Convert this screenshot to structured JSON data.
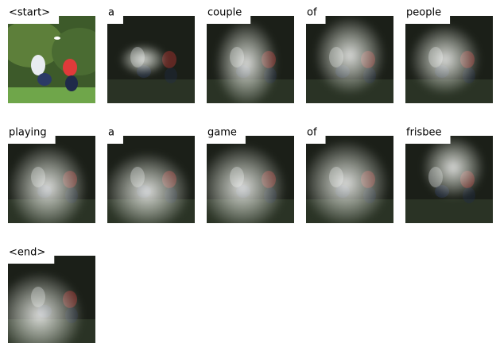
{
  "words": [
    "<start>",
    "a",
    "couple",
    "of",
    "people",
    "playing",
    "a",
    "game",
    "of",
    "frisbee",
    "<end>"
  ]
}
